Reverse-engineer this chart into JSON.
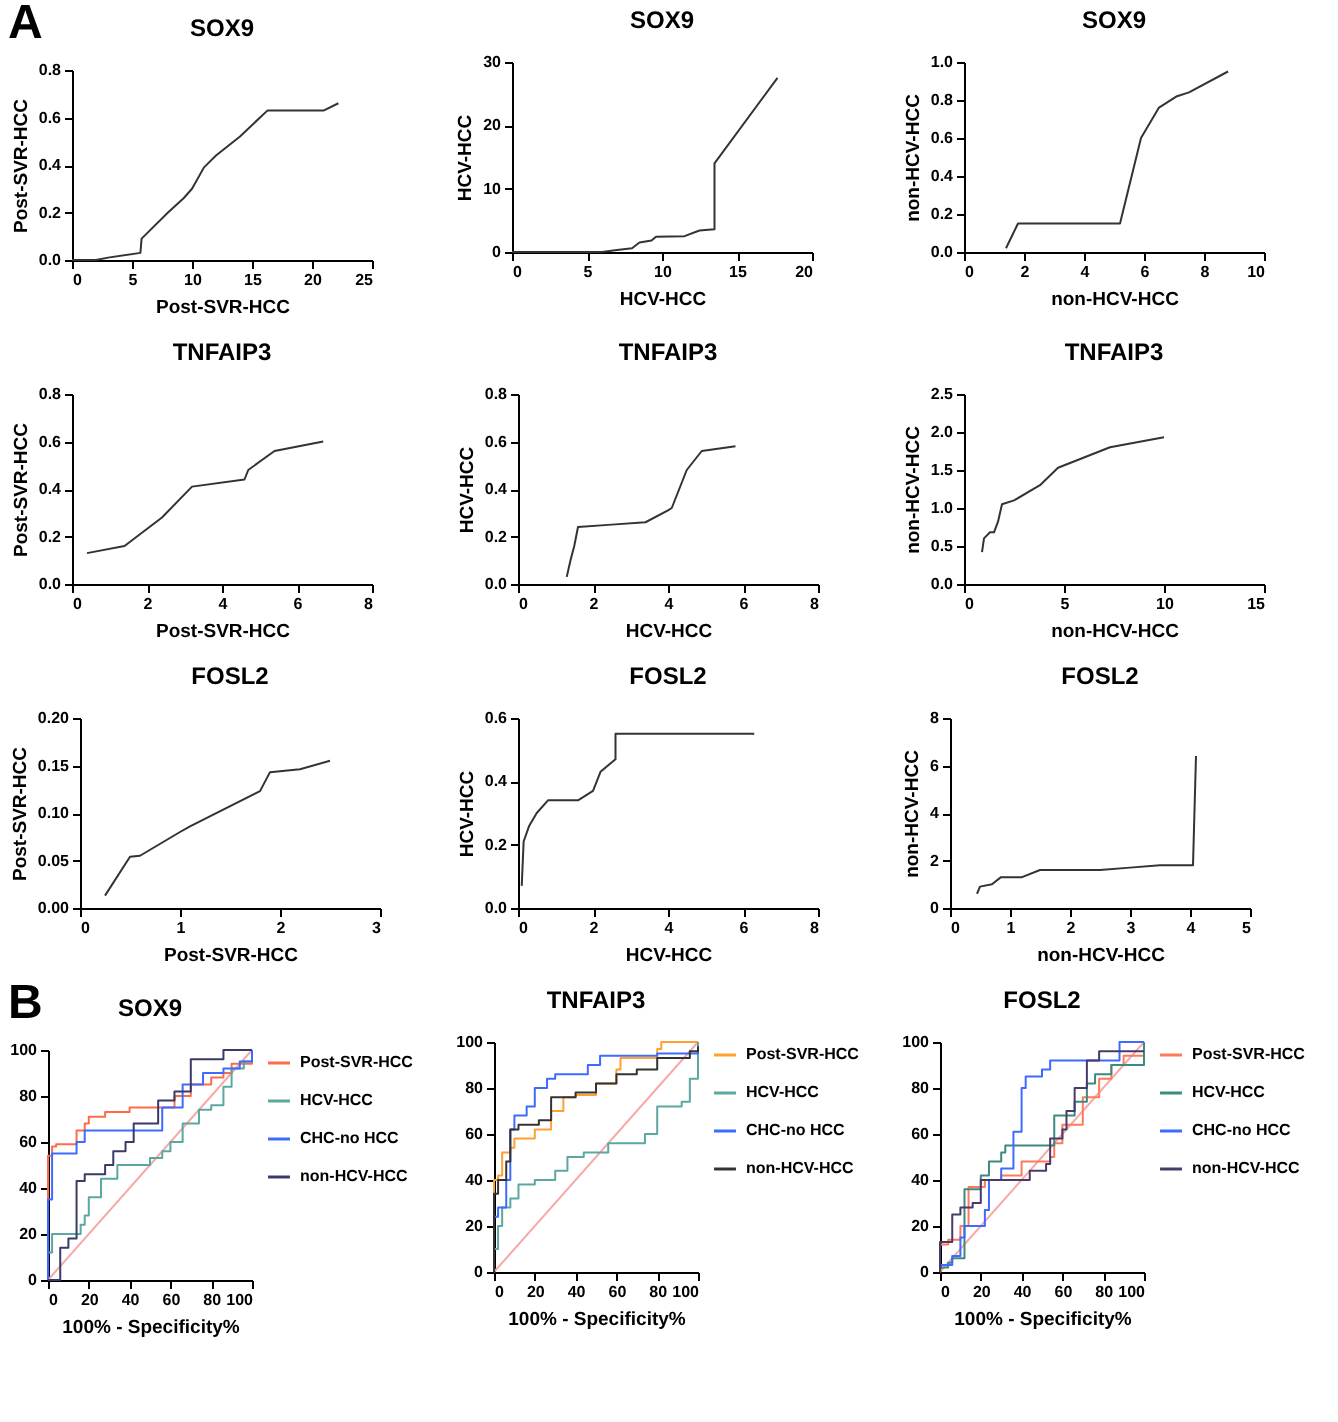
{
  "chart_data": [
    {
      "type": "line",
      "title": "SOX9",
      "xlabel": "Post-SVR-HCC",
      "ylabel": "Post-SVR-HCC",
      "annotations": [
        "A"
      ],
      "xlim": [
        0,
        25
      ],
      "xticks": [
        0,
        5,
        10,
        15,
        20,
        25
      ],
      "ylim": [
        0,
        0.8
      ],
      "yticks": [
        {
          "value": 0,
          "label": "0.0"
        },
        0.2,
        0.4,
        0.6,
        0.8
      ],
      "series": [
        {
          "color": "#333333",
          "x": [
            0,
            2,
            3,
            5.7,
            5.8,
            6.2,
            8,
            9.3,
            10,
            11,
            12,
            14,
            16.3,
            21,
            22.2
          ],
          "values": [
            0,
            0,
            0.01,
            0.03,
            0.09,
            0.11,
            0.2,
            0.26,
            0.3,
            0.39,
            0.44,
            0.52,
            0.63,
            0.63,
            0.66
          ]
        }
      ]
    },
    {
      "type": "line",
      "title": "SOX9",
      "xlabel": "HCV-HCC",
      "ylabel": "HCV-HCC",
      "xlim": [
        0,
        20
      ],
      "xticks": [
        0,
        5,
        10,
        15,
        20
      ],
      "ylim": [
        0,
        30
      ],
      "yticks": [
        0,
        10,
        20,
        30
      ],
      "series": [
        {
          "color": "#333333",
          "x": [
            0,
            6,
            7,
            8,
            8.5,
            9.3,
            9.6,
            11.5,
            12.5,
            13.5,
            13.5,
            17.7
          ],
          "values": [
            0,
            0,
            0.3,
            0.6,
            1.5,
            1.8,
            2.4,
            2.5,
            3.4,
            3.6,
            14,
            27.5
          ]
        }
      ]
    },
    {
      "type": "line",
      "title": "SOX9",
      "xlabel": "non-HCV-HCC",
      "ylabel": "non-HCV-HCC",
      "xlim": [
        0,
        10
      ],
      "xticks": [
        0,
        2,
        4,
        6,
        8,
        10
      ],
      "ylim": [
        0,
        1
      ],
      "yticks": [
        {
          "value": 0,
          "label": "0.0"
        },
        0.2,
        0.4,
        0.6,
        0.8,
        {
          "value": 1,
          "label": "1.0"
        }
      ],
      "series": [
        {
          "color": "#333333",
          "x": [
            1.4,
            1.8,
            5.2,
            5.9,
            6.5,
            7.1,
            7.5,
            8.8
          ],
          "values": [
            0.02,
            0.15,
            0.15,
            0.6,
            0.76,
            0.82,
            0.84,
            0.95
          ]
        }
      ]
    },
    {
      "type": "line",
      "title": "TNFAIP3",
      "xlabel": "Post-SVR-HCC",
      "ylabel": "Post-SVR-HCC",
      "xlim": [
        0,
        8
      ],
      "xticks": [
        0,
        2,
        4,
        6,
        8
      ],
      "ylim": [
        0,
        0.8
      ],
      "yticks": [
        {
          "value": 0,
          "label": "0.0"
        },
        0.2,
        0.4,
        0.6,
        0.8
      ],
      "series": [
        {
          "color": "#333333",
          "x": [
            0.4,
            1.4,
            2.4,
            3.2,
            4.6,
            4.7,
            5.4,
            6.7
          ],
          "values": [
            0.13,
            0.16,
            0.28,
            0.41,
            0.44,
            0.48,
            0.56,
            0.6
          ]
        }
      ]
    },
    {
      "type": "line",
      "title": "TNFAIP3",
      "xlabel": "HCV-HCC",
      "ylabel": "HCV-HCC",
      "xlim": [
        0,
        8
      ],
      "xticks": [
        0,
        2,
        4,
        6,
        8
      ],
      "ylim": [
        0,
        0.8
      ],
      "yticks": [
        {
          "value": 0,
          "label": "0.0"
        },
        0.2,
        0.4,
        0.6,
        0.8
      ],
      "series": [
        {
          "color": "#333333",
          "x": [
            1.3,
            1.4,
            1.5,
            1.6,
            2.5,
            3.4,
            4.0,
            4.1,
            4.5,
            4.9,
            5.8
          ],
          "values": [
            0.03,
            0.1,
            0.16,
            0.24,
            0.25,
            0.26,
            0.31,
            0.32,
            0.48,
            0.56,
            0.58
          ]
        }
      ]
    },
    {
      "type": "line",
      "title": "TNFAIP3",
      "xlabel": "non-HCV-HCC",
      "ylabel": "non-HCV-HCC",
      "xlim": [
        0,
        15
      ],
      "xticks": [
        0,
        5,
        10,
        15
      ],
      "ylim": [
        0,
        2.5
      ],
      "yticks": [
        {
          "value": 0,
          "label": "0.0"
        },
        0.5,
        {
          "value": 1,
          "label": "1.0"
        },
        1.5,
        {
          "value": 2,
          "label": "2.0"
        },
        2.5
      ],
      "series": [
        {
          "color": "#333333",
          "x": [
            0.9,
            1.0,
            1.3,
            1.5,
            1.7,
            1.9,
            2.5,
            3.8,
            4.7,
            7.3,
            10
          ],
          "values": [
            0.42,
            0.6,
            0.68,
            0.68,
            0.82,
            1.05,
            1.1,
            1.3,
            1.53,
            1.8,
            1.93
          ]
        }
      ]
    },
    {
      "type": "line",
      "title": "FOSL2",
      "xlabel": "Post-SVR-HCC",
      "ylabel": "Post-SVR-HCC",
      "xlim": [
        0,
        3
      ],
      "xticks": [
        0,
        1,
        2,
        3
      ],
      "ylim": [
        0,
        0.2
      ],
      "yticks": [
        {
          "value": 0,
          "label": "0.00"
        },
        0.05,
        {
          "value": 0.1,
          "label": "0.10"
        },
        0.15,
        {
          "value": 0.2,
          "label": "0.20"
        }
      ],
      "series": [
        {
          "color": "#333333",
          "x": [
            0.25,
            0.5,
            0.6,
            1.0,
            1.1,
            1.8,
            1.9,
            2.2,
            2.5
          ],
          "values": [
            0.013,
            0.054,
            0.055,
            0.08,
            0.086,
            0.123,
            0.143,
            0.146,
            0.155
          ]
        }
      ]
    },
    {
      "type": "line",
      "title": "FOSL2",
      "xlabel": "HCV-HCC",
      "ylabel": "HCV-HCC",
      "xlim": [
        0,
        8
      ],
      "xticks": [
        0,
        2,
        4,
        6,
        8
      ],
      "ylim": [
        0,
        0.6
      ],
      "yticks": [
        {
          "value": 0,
          "label": "0.0"
        },
        0.2,
        0.4,
        0.6
      ],
      "series": [
        {
          "color": "#333333",
          "x": [
            0.1,
            0.15,
            0.3,
            0.5,
            0.8,
            1.6,
            2.0,
            2.2,
            2.6,
            2.6,
            6.3
          ],
          "values": [
            0.07,
            0.21,
            0.26,
            0.3,
            0.34,
            0.34,
            0.37,
            0.43,
            0.47,
            0.55,
            0.55
          ]
        }
      ]
    },
    {
      "type": "line",
      "title": "FOSL2",
      "xlabel": "non-HCV-HCC",
      "ylabel": "non-HCV-HCC",
      "xlim": [
        0,
        5
      ],
      "xticks": [
        0,
        1,
        2,
        3,
        4,
        5
      ],
      "ylim": [
        0,
        8
      ],
      "yticks": [
        0,
        2,
        4,
        6,
        8
      ],
      "series": [
        {
          "color": "#333333",
          "x": [
            0.45,
            0.5,
            0.7,
            0.85,
            1.2,
            1.5,
            2.5,
            3.0,
            3.5,
            4.05,
            4.1
          ],
          "values": [
            0.6,
            0.9,
            1.0,
            1.3,
            1.3,
            1.6,
            1.6,
            1.7,
            1.8,
            1.8,
            6.4
          ]
        }
      ]
    },
    {
      "type": "line",
      "title": "SOX9",
      "xlabel": "100% - Specificity%",
      "annotations": [
        "B"
      ],
      "xlim": [
        0,
        100
      ],
      "xticks": [
        0,
        20,
        40,
        60,
        80,
        100
      ],
      "ylim": [
        0,
        100
      ],
      "yticks": [
        0,
        20,
        40,
        60,
        80,
        100
      ],
      "legend": "right",
      "series": [
        {
          "type": "line",
          "color": "#f7a8a8",
          "x": [
            0,
            100
          ],
          "values": [
            0,
            100
          ]
        },
        {
          "type": "step",
          "name": "Post-SVR-HCC",
          "color": "#ff6b4a",
          "x": [
            0,
            0,
            0,
            2,
            4,
            14,
            14,
            18,
            20,
            28,
            40,
            60,
            62,
            70,
            80,
            86,
            90,
            100
          ],
          "values": [
            0,
            36,
            54,
            58,
            59,
            60,
            65,
            68,
            71,
            73,
            75,
            75,
            80,
            85,
            88,
            90,
            94,
            100
          ]
        },
        {
          "type": "step",
          "name": "HCV-HCC",
          "color": "#5aa8a0",
          "x": [
            0,
            0,
            2,
            14,
            16,
            18,
            20,
            26,
            34,
            50,
            56,
            60,
            66,
            74,
            80,
            86,
            90,
            96,
            100
          ],
          "values": [
            0,
            12,
            20,
            20,
            24,
            28,
            36,
            44,
            50,
            53,
            56,
            60,
            68,
            74,
            76,
            84,
            92,
            95,
            100
          ]
        },
        {
          "type": "step",
          "name": "CHC-no HCC",
          "color": "#3d6bff",
          "x": [
            0,
            0,
            2,
            14,
            14,
            18,
            56,
            56,
            64,
            66,
            76,
            86,
            94,
            100
          ],
          "values": [
            0,
            35,
            55,
            55,
            60,
            65,
            65,
            75,
            75,
            85,
            90,
            92,
            95,
            100
          ]
        },
        {
          "type": "step",
          "name": "non-HCV-HCC",
          "color": "#3a3a6a",
          "x": [
            0,
            4,
            6,
            10,
            14,
            18,
            28,
            32,
            38,
            42,
            54,
            62,
            70,
            86,
            100
          ],
          "values": [
            0,
            0,
            14,
            18,
            43,
            46,
            50,
            56,
            60,
            68,
            78,
            82,
            96,
            100,
            100
          ]
        }
      ]
    },
    {
      "type": "line",
      "title": "TNFAIP3",
      "xlabel": "100% - Specificity%",
      "xlim": [
        0,
        100
      ],
      "xticks": [
        0,
        20,
        40,
        60,
        80,
        100
      ],
      "ylim": [
        0,
        100
      ],
      "yticks": [
        0,
        20,
        40,
        60,
        80,
        100
      ],
      "legend": "right",
      "series": [
        {
          "type": "line",
          "color": "#f7a8a8",
          "x": [
            0,
            100
          ],
          "values": [
            0,
            100
          ]
        },
        {
          "type": "step",
          "name": "Post-SVR-HCC",
          "color": "#ffa030",
          "x": [
            0,
            0,
            2,
            4,
            8,
            10,
            20,
            28,
            34,
            40,
            50,
            60,
            62,
            70,
            80,
            82,
            100
          ],
          "values": [
            0,
            40,
            42,
            52,
            54,
            58,
            62,
            70,
            76,
            77,
            82,
            88,
            93,
            93,
            97,
            100,
            100
          ]
        },
        {
          "type": "step",
          "name": "HCV-HCC",
          "color": "#5aa8a0",
          "x": [
            0,
            0,
            2,
            4,
            8,
            12,
            20,
            30,
            36,
            44,
            56,
            74,
            80,
            92,
            96,
            100,
            100
          ],
          "values": [
            0,
            10,
            20,
            28,
            32,
            38,
            40,
            44,
            50,
            52,
            56,
            60,
            72,
            74,
            84,
            90,
            100
          ]
        },
        {
          "type": "step",
          "name": "CHC-no HCC",
          "color": "#3d6bff",
          "x": [
            0,
            0,
            2,
            6,
            8,
            10,
            16,
            20,
            26,
            30,
            46,
            52,
            80,
            100
          ],
          "values": [
            0,
            24,
            28,
            40,
            62,
            68,
            72,
            80,
            84,
            86,
            90,
            94,
            95,
            98
          ]
        },
        {
          "type": "step",
          "name": "non-HCV-HCC",
          "color": "#333333",
          "x": [
            0,
            0,
            2,
            6,
            8,
            12,
            22,
            28,
            40,
            50,
            60,
            70,
            80,
            96,
            100
          ],
          "values": [
            0,
            34,
            40,
            48,
            62,
            64,
            66,
            76,
            78,
            82,
            86,
            88,
            93,
            96,
            98
          ]
        }
      ]
    },
    {
      "type": "line",
      "title": "FOSL2",
      "xlabel": "100% - Specificity%",
      "xlim": [
        0,
        100
      ],
      "xticks": [
        0,
        20,
        40,
        60,
        80,
        100
      ],
      "ylim": [
        0,
        100
      ],
      "yticks": [
        0,
        20,
        40,
        60,
        80,
        100
      ],
      "legend": "right",
      "series": [
        {
          "type": "line",
          "color": "#f7a8a8",
          "x": [
            0,
            100
          ],
          "values": [
            0,
            100
          ]
        },
        {
          "type": "step",
          "name": "Post-SVR-HCC",
          "color": "#ff7a5a",
          "x": [
            0,
            0,
            4,
            10,
            14,
            22,
            30,
            40,
            54,
            56,
            60,
            70,
            78,
            84,
            90,
            100
          ],
          "values": [
            0,
            12,
            14,
            20,
            37,
            40,
            42,
            48,
            50,
            56,
            64,
            76,
            84,
            90,
            94,
            100
          ]
        },
        {
          "type": "step",
          "name": "HCV-HCC",
          "color": "#3d8a80",
          "x": [
            0,
            0,
            4,
            6,
            10,
            12,
            20,
            24,
            30,
            32,
            54,
            56,
            60,
            66,
            72,
            76,
            84,
            90,
            100
          ],
          "values": [
            0,
            2,
            4,
            6,
            6,
            36,
            42,
            48,
            52,
            55,
            55,
            68,
            68,
            74,
            82,
            86,
            90,
            90,
            100
          ]
        },
        {
          "type": "step",
          "name": "CHC-no HCC",
          "color": "#3d6bff",
          "x": [
            0,
            0,
            6,
            10,
            12,
            20,
            22,
            24,
            30,
            36,
            40,
            42,
            50,
            54,
            88,
            100
          ],
          "values": [
            0,
            3,
            7,
            15,
            20,
            20,
            27,
            40,
            45,
            61,
            80,
            85,
            88,
            92,
            100,
            100
          ]
        },
        {
          "type": "step",
          "name": "non-HCV-HCC",
          "color": "#4a3a6a",
          "x": [
            0,
            0,
            6,
            10,
            16,
            20,
            38,
            44,
            52,
            54,
            60,
            62,
            66,
            72,
            78,
            100
          ],
          "values": [
            0,
            13,
            25,
            28,
            30,
            40,
            40,
            44,
            47,
            58,
            62,
            70,
            80,
            92,
            96,
            96
          ]
        }
      ]
    }
  ]
}
